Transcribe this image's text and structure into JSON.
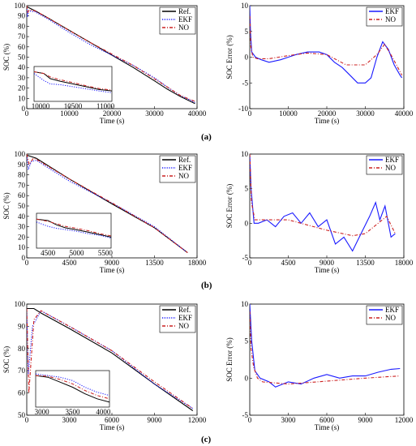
{
  "panel_labels": [
    "(a)",
    "(b)",
    "(c)"
  ],
  "chart_data": [
    {
      "id": "a-soc",
      "type": "line",
      "xlabel": "Time (s)",
      "ylabel": "SOC (%)",
      "xlim": [
        0,
        40000
      ],
      "ylim": [
        0,
        100
      ],
      "xticks": [
        0,
        10000,
        20000,
        30000,
        40000
      ],
      "yticks": [
        0,
        10,
        20,
        30,
        40,
        50,
        60,
        70,
        80,
        90,
        100
      ],
      "legend": "top-right",
      "series": [
        {
          "name": "Ref.",
          "style": "solid",
          "color": "#000000",
          "x": [
            0,
            2000,
            5000,
            10000,
            15000,
            20000,
            25000,
            30000,
            33000,
            36000,
            39500
          ],
          "y": [
            99,
            95,
            88,
            76,
            64,
            52,
            40,
            27,
            19,
            12,
            5
          ]
        },
        {
          "name": "EKF",
          "style": "dotted",
          "color": "#1a1aff",
          "x": [
            0,
            150,
            400,
            2000,
            5000,
            10000,
            15000,
            20000,
            25000,
            30000,
            33000,
            36000,
            39500
          ],
          "y": [
            99,
            89,
            95,
            94,
            87,
            74,
            62,
            52,
            42,
            30,
            21,
            13,
            6
          ]
        },
        {
          "name": "NO",
          "style": "dashdot",
          "color": "#cc2020",
          "x": [
            0,
            200,
            600,
            2000,
            5000,
            10000,
            15000,
            20000,
            25000,
            30000,
            33000,
            36000,
            39500
          ],
          "y": [
            100,
            93,
            96,
            95,
            88,
            76,
            64,
            53,
            42,
            29,
            21,
            13,
            7
          ]
        }
      ],
      "inset": {
        "xlim": [
          9900,
          11100
        ],
        "ylim": [
          68,
          78
        ],
        "xticks": [
          10000,
          10500,
          11000
        ],
        "series": [
          {
            "name": "Ref.",
            "x": [
              9900,
              10050,
              10150,
              10300,
              10500,
              10700,
              10900,
              11100
            ],
            "y": [
              76.5,
              76,
              74.5,
              73.8,
              73,
              72.2,
              71.4,
              71
            ]
          },
          {
            "name": "EKF",
            "x": [
              9900,
              10050,
              10150,
              10300,
              10500,
              10700,
              10900,
              11100
            ],
            "y": [
              76,
              74,
              73,
              72.8,
              72.2,
              71.6,
              71,
              70.5
            ]
          },
          {
            "name": "NO",
            "x": [
              9900,
              10050,
              10150,
              10300,
              10500,
              10700,
              10900,
              11100
            ],
            "y": [
              76.5,
              76,
              75,
              74.2,
              73.4,
              72.5,
              71.7,
              71.2
            ]
          }
        ]
      }
    },
    {
      "id": "a-err",
      "type": "line",
      "xlabel": "Time (s)",
      "ylabel": "SOC Error (%)",
      "xlim": [
        0,
        40000
      ],
      "ylim": [
        -10,
        10
      ],
      "xticks": [
        0,
        10000,
        20000,
        30000,
        40000
      ],
      "yticks": [
        -10,
        -5,
        0,
        5,
        10
      ],
      "legend": "top-right",
      "series": [
        {
          "name": "EKF",
          "style": "solid",
          "color": "#1a1aff",
          "x": [
            0,
            200,
            500,
            1500,
            3000,
            5000,
            8000,
            10000,
            12000,
            15000,
            18000,
            20000,
            22000,
            24000,
            26000,
            28000,
            30000,
            31500,
            33000,
            34500,
            36000,
            37500,
            39000,
            39500
          ],
          "y": [
            10,
            5,
            1,
            0,
            -0.5,
            -1,
            -0.5,
            0,
            0.5,
            1,
            1,
            0.5,
            -1,
            -2,
            -3.5,
            -5,
            -5,
            -4,
            0,
            3,
            1.5,
            -1.5,
            -3.5,
            -4
          ]
        },
        {
          "name": "NO",
          "style": "dashdot",
          "color": "#cc2020",
          "x": [
            0,
            300,
            800,
            2000,
            5000,
            10000,
            15000,
            20000,
            25000,
            30000,
            33000,
            35000,
            37000,
            39500
          ],
          "y": [
            8,
            2,
            0,
            -0.3,
            -0.3,
            0.3,
            0.8,
            0.5,
            -1.5,
            -1.5,
            0.5,
            2.5,
            0,
            -3.5
          ]
        }
      ]
    },
    {
      "id": "b-soc",
      "type": "line",
      "xlabel": "Time (s)",
      "ylabel": "SOC (%)",
      "xlim": [
        0,
        18000
      ],
      "ylim": [
        0,
        100
      ],
      "xticks": [
        0,
        4500,
        9000,
        13500,
        18000
      ],
      "yticks": [
        0,
        10,
        20,
        30,
        40,
        50,
        60,
        70,
        80,
        90,
        100
      ],
      "legend": "top-right",
      "series": [
        {
          "name": "Ref.",
          "style": "solid",
          "color": "#000000",
          "x": [
            0,
            1000,
            4500,
            9000,
            13500,
            17000
          ],
          "y": [
            99,
            96,
            76,
            52,
            29,
            5
          ]
        },
        {
          "name": "EKF",
          "style": "dotted",
          "color": "#1a1aff",
          "x": [
            0,
            150,
            500,
            1000,
            4500,
            9000,
            13500,
            17000
          ],
          "y": [
            99,
            85,
            93,
            94,
            74,
            53,
            30,
            5
          ]
        },
        {
          "name": "NO",
          "style": "dashdot",
          "color": "#cc2020",
          "x": [
            0,
            250,
            700,
            1000,
            4500,
            9000,
            13500,
            17000
          ],
          "y": [
            100,
            90,
            96,
            95,
            76,
            53,
            29,
            5
          ]
        }
      ],
      "inset": {
        "xlim": [
          4300,
          5600
        ],
        "ylim": [
          68,
          80
        ],
        "xticks": [
          4500,
          5000,
          5500
        ],
        "series": [
          {
            "name": "Ref.",
            "x": [
              4300,
              4500,
              4650,
              4800,
              5000,
              5200,
              5400,
              5600
            ],
            "y": [
              78,
              77.5,
              76,
              75,
              74.3,
              73.5,
              72.7,
              71.8
            ]
          },
          {
            "name": "EKF",
            "x": [
              4300,
              4500,
              4650,
              4800,
              5000,
              5200,
              5400,
              5600
            ],
            "y": [
              77,
              75.5,
              74.8,
              74.4,
              73.8,
              73,
              72.4,
              71.5
            ]
          },
          {
            "name": "NO",
            "x": [
              4300,
              4500,
              4650,
              4800,
              5000,
              5200,
              5400,
              5600
            ],
            "y": [
              78,
              77.2,
              76.4,
              75.5,
              74.8,
              74,
              73,
              72.2
            ]
          }
        ]
      }
    },
    {
      "id": "b-err",
      "type": "line",
      "xlabel": "Time (s)",
      "ylabel": "SOC Error (%)",
      "xlim": [
        0,
        18000
      ],
      "ylim": [
        -5,
        10
      ],
      "xticks": [
        0,
        4500,
        9000,
        13500,
        18000
      ],
      "yticks": [
        -5,
        0,
        5,
        10
      ],
      "legend": "top-right",
      "series": [
        {
          "name": "EKF",
          "style": "solid",
          "color": "#1a1aff",
          "x": [
            0,
            150,
            500,
            1000,
            2000,
            3000,
            4000,
            5000,
            6000,
            7000,
            8000,
            9000,
            10000,
            11000,
            12000,
            13000,
            14000,
            14700,
            15200,
            15800,
            16500,
            17000
          ],
          "y": [
            10,
            5,
            0,
            0,
            0.5,
            -0.5,
            1,
            1.5,
            0,
            1.5,
            -0.5,
            0.5,
            -3,
            -2,
            -4,
            -1.5,
            1,
            3,
            0.5,
            2.5,
            -2,
            -1.5
          ]
        },
        {
          "name": "NO",
          "style": "dashdot",
          "color": "#cc2020",
          "x": [
            0,
            200,
            600,
            1500,
            4500,
            9000,
            12000,
            13500,
            15000,
            16000,
            17000
          ],
          "y": [
            10,
            3,
            0.5,
            0.5,
            0.5,
            -1,
            -1.8,
            -1.5,
            0,
            1,
            -1.5
          ]
        }
      ]
    },
    {
      "id": "c-soc",
      "type": "line",
      "xlabel": "Time (s)",
      "ylabel": "SOC (%)",
      "xlim": [
        0,
        12000
      ],
      "ylim": [
        50,
        100
      ],
      "xticks": [
        0,
        3000,
        6000,
        9000,
        12000
      ],
      "yticks": [
        50,
        60,
        70,
        80,
        90,
        100
      ],
      "legend": "top-right",
      "series": [
        {
          "name": "Ref.",
          "style": "solid",
          "color": "#000000",
          "x": [
            0,
            500,
            1000,
            3000,
            6000,
            9000,
            11700
          ],
          "y": [
            98,
            98,
            96,
            89,
            78,
            64,
            52
          ]
        },
        {
          "name": "EKF",
          "style": "dotted",
          "color": "#1a1aff",
          "x": [
            0,
            100,
            400,
            1000,
            3000,
            6000,
            9000,
            11700
          ],
          "y": [
            98,
            68,
            90,
            97,
            90,
            79,
            64,
            53
          ]
        },
        {
          "name": "NO",
          "style": "dashdot",
          "color": "#cc2020",
          "x": [
            0,
            150,
            500,
            1000,
            3000,
            6000,
            9000,
            11700
          ],
          "y": [
            98,
            60,
            93,
            97,
            90,
            79,
            65,
            53
          ]
        }
      ],
      "inset": {
        "xlim": [
          2900,
          4100
        ],
        "ylim": [
          83,
          94
        ],
        "xticks": [
          3000,
          3500,
          4000
        ],
        "series": [
          {
            "name": "Ref.",
            "x": [
              2900,
              3100,
              3300,
              3500,
              3700,
              3900,
              4100
            ],
            "y": [
              92.5,
              92,
              90.5,
              89,
              87,
              85.5,
              84.5
            ]
          },
          {
            "name": "EKF",
            "x": [
              2900,
              3100,
              3300,
              3500,
              3700,
              3900,
              4100
            ],
            "y": [
              93,
              92.5,
              92,
              91,
              89,
              87.5,
              86.5
            ]
          },
          {
            "name": "NO",
            "x": [
              2900,
              3100,
              3300,
              3500,
              3700,
              3900,
              4100
            ],
            "y": [
              92.5,
              92.3,
              91.3,
              90,
              88,
              86.5,
              85.5
            ]
          }
        ]
      }
    },
    {
      "id": "c-err",
      "type": "line",
      "xlabel": "Time (s)",
      "ylabel": "SOC Error (%)",
      "xlim": [
        0,
        12000
      ],
      "ylim": [
        -5,
        10
      ],
      "xticks": [
        0,
        3000,
        6000,
        9000,
        12000
      ],
      "yticks": [
        -5,
        0,
        5,
        10
      ],
      "legend": "top-right",
      "series": [
        {
          "name": "EKF",
          "style": "solid",
          "color": "#1a1aff",
          "x": [
            0,
            150,
            400,
            800,
            1500,
            2000,
            3000,
            4000,
            5000,
            6000,
            7000,
            8000,
            9000,
            10000,
            11000,
            11700
          ],
          "y": [
            10,
            5,
            1,
            0,
            -0.5,
            -1.2,
            -0.5,
            -0.8,
            0,
            0.5,
            0,
            0.3,
            0.3,
            0.8,
            1.2,
            1.3
          ]
        },
        {
          "name": "NO",
          "style": "dashdot",
          "color": "#cc2020",
          "x": [
            0,
            100,
            300,
            600,
            1000,
            3000,
            6000,
            9000,
            11700
          ],
          "y": [
            9,
            4,
            1.5,
            0,
            -0.5,
            -0.8,
            -0.4,
            0,
            0.3
          ]
        }
      ]
    }
  ]
}
